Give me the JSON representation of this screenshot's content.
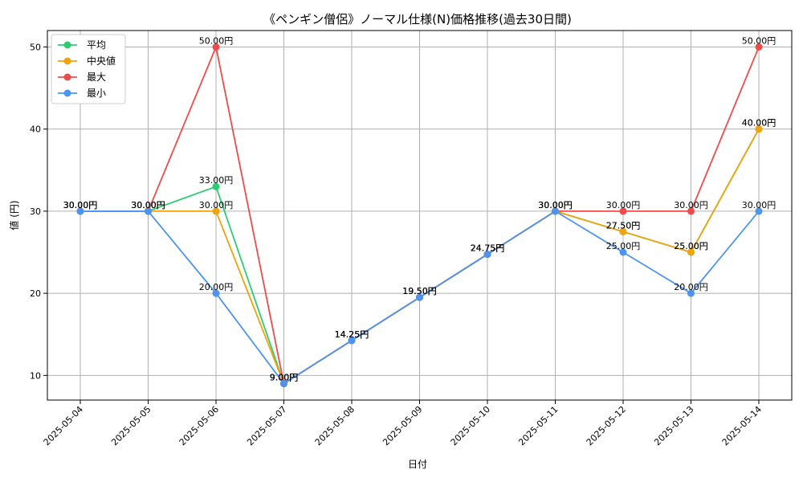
{
  "chart_data": {
    "type": "line",
    "title": "《ペンギン僧侶》ノーマル仕様(N)価格推移(過去30日間)",
    "xlabel": "日付",
    "ylabel": "値 (円)",
    "ylim": [
      7,
      52
    ],
    "yticks": [
      10,
      20,
      30,
      40,
      50
    ],
    "grid": true,
    "legend_position": "top-left",
    "value_suffix": "円",
    "categories": [
      "2025-05-04",
      "2025-05-05",
      "2025-05-06",
      "2025-05-07",
      "2025-05-08",
      "2025-05-09",
      "2025-05-10",
      "2025-05-11",
      "2025-05-12",
      "2025-05-13",
      "2025-05-14"
    ],
    "series": [
      {
        "name": "平均",
        "color": "#2ecc71",
        "values": [
          30,
          30,
          33,
          9,
          14.25,
          19.5,
          24.75,
          30,
          27.5,
          25,
          40
        ],
        "labels": [
          "30.00円",
          "30.00円",
          "33.00円",
          "9.00円",
          "14.25円",
          "19.50円",
          "24.75円",
          "30.00円",
          "27.50円",
          "25.00円",
          "40.00円"
        ]
      },
      {
        "name": "中央値",
        "color": "#f0a30a",
        "values": [
          30,
          30,
          30,
          9,
          14.25,
          19.5,
          24.75,
          30,
          27.5,
          25,
          40
        ],
        "labels": [
          "30.00円",
          "30.00円",
          "30.00円",
          "9.00円",
          "14.25円",
          "19.50円",
          "24.75円",
          "30.00円",
          "27.50円",
          "25.00円",
          "40.00円"
        ]
      },
      {
        "name": "最大",
        "color": "#ef4b4b",
        "values": [
          30,
          30,
          50,
          9,
          14.25,
          19.5,
          24.75,
          30,
          30,
          30,
          50
        ],
        "labels": [
          "30.00円",
          "30.00円",
          "50.00円",
          "9.00円",
          "14.25円",
          "19.50円",
          "24.75円",
          "30.00円",
          "30.00円",
          "30.00円",
          "50.00円"
        ]
      },
      {
        "name": "最小",
        "color": "#4c94f0",
        "values": [
          30,
          30,
          20,
          9,
          14.25,
          19.5,
          24.75,
          30,
          25,
          20,
          30
        ],
        "labels": [
          "30.00円",
          "30.00円",
          "20.00円",
          "9.00円",
          "14.25円",
          "19.50円",
          "24.75円",
          "30.00円",
          "25.00円",
          "20.00円",
          "30.00円"
        ]
      }
    ]
  }
}
